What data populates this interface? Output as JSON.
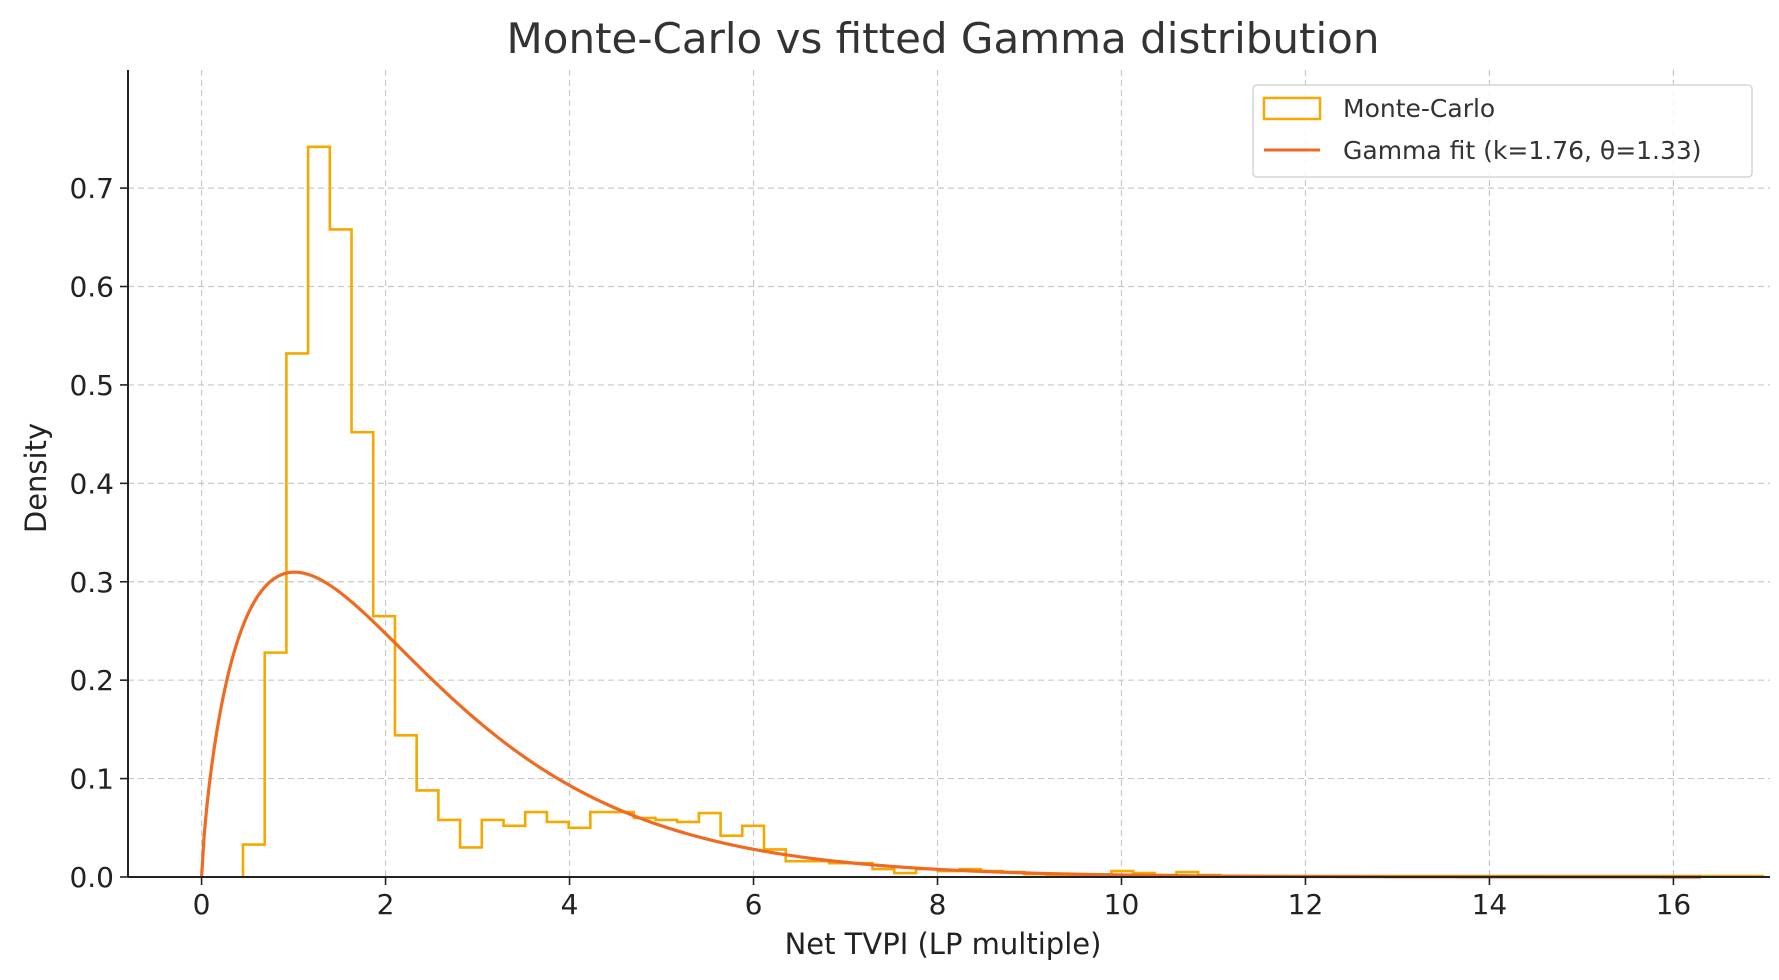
{
  "chart_data": {
    "type": "histogram",
    "title": "Monte-Carlo vs fitted Gamma distribution",
    "xlabel": "Net TVPI (LP multiple)",
    "ylabel": "Density",
    "xlim": [
      -0.8,
      17.05
    ],
    "ylim": [
      0,
      0.82
    ],
    "xticks": [
      0,
      2,
      4,
      6,
      8,
      10,
      12,
      14,
      16
    ],
    "yticks": [
      0.0,
      0.1,
      0.2,
      0.3,
      0.4,
      0.5,
      0.6,
      0.7
    ],
    "grid": true,
    "legend_position": "top-right",
    "series": [
      {
        "name": "Monte-Carlo",
        "kind": "step-histogram",
        "color": "#f5a800",
        "bin_start": 0.45,
        "bin_width": 0.236,
        "values": [
          0.033,
          0.228,
          0.532,
          0.742,
          0.658,
          0.452,
          0.265,
          0.144,
          0.088,
          0.058,
          0.03,
          0.058,
          0.052,
          0.066,
          0.056,
          0.05,
          0.066,
          0.066,
          0.06,
          0.058,
          0.056,
          0.065,
          0.042,
          0.052,
          0.028,
          0.016,
          0.016,
          0.014,
          0.014,
          0.008,
          0.004,
          0.008,
          0.006,
          0.008,
          0.006,
          0.005,
          0.003,
          0.002,
          0.002,
          0.002,
          0.006,
          0.004,
          0.002,
          0.005,
          0.002,
          0.001,
          0.001,
          0.001,
          0.001,
          0.001,
          0.001,
          0.001,
          0.001,
          0.001,
          0.001,
          0.001,
          0.001,
          0.001,
          0.001,
          0.001,
          0.001,
          0.001,
          0.001,
          0.001,
          0.001,
          0.001,
          0.001,
          0.001,
          0.001,
          0.001
        ]
      },
      {
        "name": "Gamma fit (k=1.76, θ=1.33)",
        "kind": "line",
        "color": "#ef6a22",
        "k": 1.76,
        "theta": 1.33,
        "x_range": [
          0,
          16.3
        ]
      }
    ]
  }
}
